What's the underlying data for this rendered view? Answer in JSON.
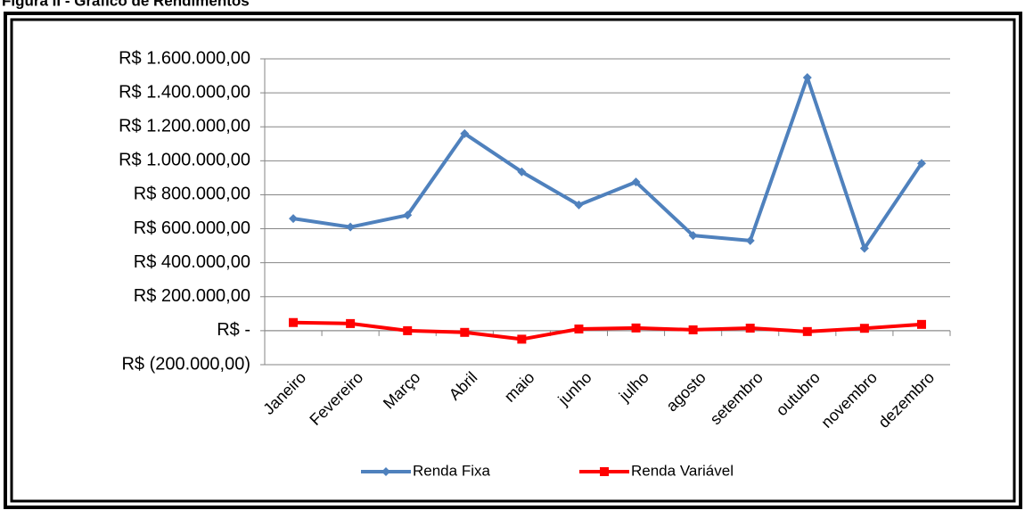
{
  "chart_data": {
    "type": "line",
    "title": "Figura II - Gráfico de Rendimentos",
    "categories": [
      "Janeiro",
      "Fevereiro",
      "Março",
      "Abril",
      "maio",
      "junho",
      "julho",
      "agosto",
      "setembro",
      "outubro",
      "novembro",
      "dezembro"
    ],
    "series": [
      {
        "name": "Renda Fixa",
        "color": "#4f81bd",
        "marker": "diamond",
        "values": [
          660000,
          610000,
          680000,
          1160000,
          935000,
          740000,
          875000,
          560000,
          530000,
          1490000,
          485000,
          985000
        ]
      },
      {
        "name": "Renda Variável",
        "color": "#ff0000",
        "marker": "square",
        "values": [
          48000,
          42000,
          0,
          -10000,
          -50000,
          10000,
          16000,
          5000,
          15000,
          -5000,
          14000,
          37000
        ]
      }
    ],
    "ylim": [
      -200000,
      1600000
    ],
    "yticks": [
      {
        "value": -200000,
        "label": "R$ (200.000,00)"
      },
      {
        "value": 0,
        "label": "R$ -"
      },
      {
        "value": 200000,
        "label": "R$ 200.000,00"
      },
      {
        "value": 400000,
        "label": "R$ 400.000,00"
      },
      {
        "value": 600000,
        "label": "R$ 600.000,00"
      },
      {
        "value": 800000,
        "label": "R$ 800.000,00"
      },
      {
        "value": 1000000,
        "label": "R$ 1.000.000,00"
      },
      {
        "value": 1200000,
        "label": "R$ 1.200.000,00"
      },
      {
        "value": 1400000,
        "label": "R$ 1.400.000,00"
      },
      {
        "value": 1600000,
        "label": "R$ 1.600.000,00"
      }
    ],
    "grid": true,
    "legend": "bottom"
  }
}
